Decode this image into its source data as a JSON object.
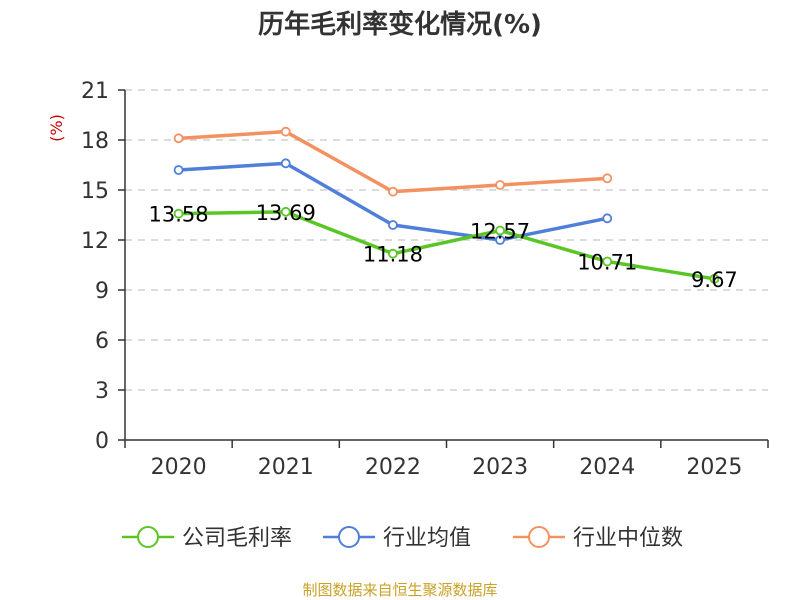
{
  "chart_data": {
    "type": "line",
    "title": "历年毛利率变化情况(%)",
    "ylabel": "(%)",
    "xlabel": "",
    "categories": [
      "2020",
      "2021",
      "2022",
      "2023",
      "2024",
      "2025"
    ],
    "ylim": [
      0,
      21
    ],
    "yticks": [
      0,
      3,
      6,
      9,
      12,
      15,
      18,
      21
    ],
    "grid": true,
    "legend_position": "bottom",
    "series": [
      {
        "name": "公司毛利率",
        "color": "#5ac626",
        "values": [
          13.58,
          13.69,
          11.18,
          12.57,
          10.71,
          9.67
        ],
        "data_labels": [
          "13.58",
          "13.69",
          "11.18",
          "12.57",
          "10.71",
          "9.67"
        ]
      },
      {
        "name": "行业均值",
        "color": "#4f7fd8",
        "values": [
          16.2,
          16.6,
          12.9,
          12.0,
          13.3,
          null
        ]
      },
      {
        "name": "行业中位数",
        "color": "#f39260",
        "values": [
          18.1,
          18.5,
          14.9,
          15.3,
          15.7,
          null
        ]
      }
    ]
  },
  "source_note": "制图数据来自恒生聚源数据库"
}
